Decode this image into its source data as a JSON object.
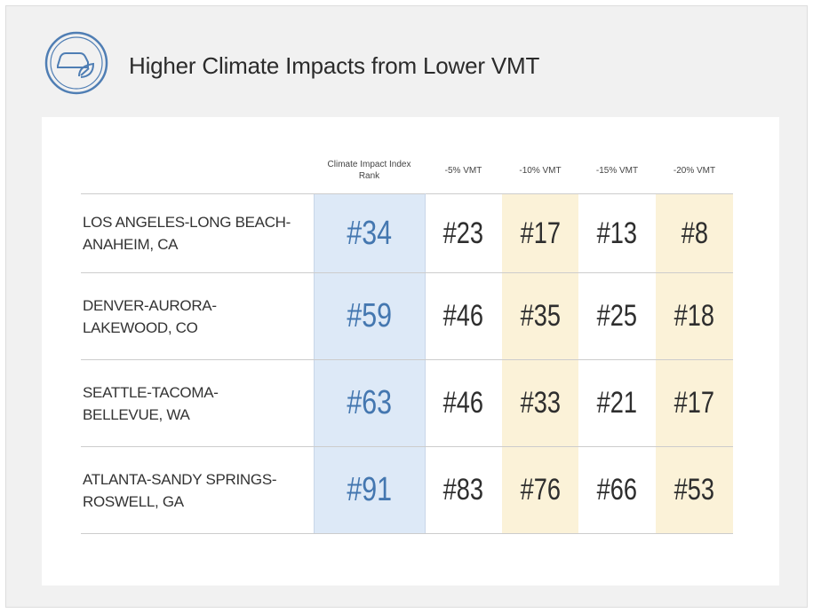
{
  "title": "Higher Climate Impacts from Lower VMT",
  "table": {
    "header": [
      "Climate Impact Index Rank",
      "-5% VMT",
      "-10% VMT",
      "-15% VMT",
      "-20% VMT"
    ],
    "rows": [
      {
        "city": [
          "LOS ANGELES-LONG BEACH-",
          "ANAHEIM, CA"
        ],
        "cells": [
          "#34",
          "#23",
          "#17",
          "#13",
          "#8"
        ]
      },
      {
        "city": [
          "DENVER-AURORA-",
          "LAKEWOOD, CO"
        ],
        "cells": [
          "#59",
          "#46",
          "#35",
          "#25",
          "#18"
        ]
      },
      {
        "city": [
          "SEATTLE-TACOMA-",
          "BELLEVUE, WA"
        ],
        "cells": [
          "#63",
          "#46",
          "#33",
          "#21",
          "#17"
        ]
      },
      {
        "city": [
          "ATLANTA-SANDY SPRINGS-",
          "ROSWELL, GA"
        ],
        "cells": [
          "#91",
          "#83",
          "#76",
          "#66",
          "#53"
        ]
      }
    ]
  }
}
